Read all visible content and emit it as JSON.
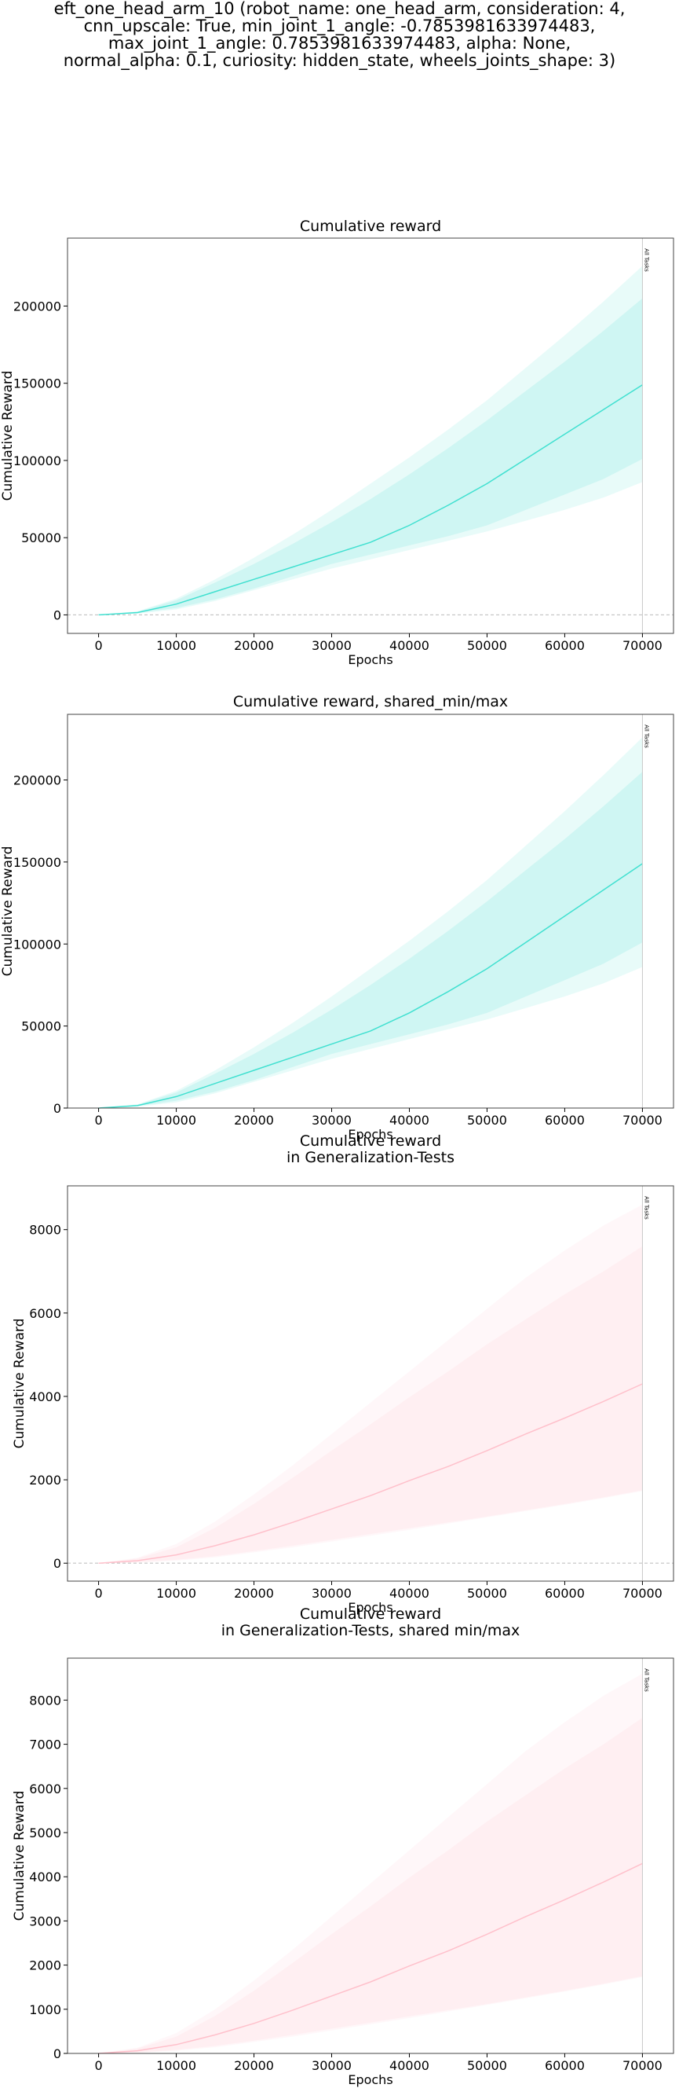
{
  "suptitle_lines": [
    "eft_one_head_arm_10 (robot_name: one_head_arm, consideration: 4,",
    "cnn_upscale: True, min_joint_1_angle: -0.7853981633974483,",
    "max_joint_1_angle: 0.7853981633974483, alpha: None,",
    "normal_alpha: 0.1, curiosity: hidden_state, wheels_joints_shape: 3)"
  ],
  "colors": {
    "turquoise": "#40e0d0",
    "pink": "#ffc0cb",
    "axis": "#444444",
    "vline": "#c8c8c8",
    "zero_line": "#bbbbbb"
  },
  "chart_data": [
    {
      "type": "line",
      "title_lines": [
        "Cumulative reward"
      ],
      "xlabel": "Epochs",
      "ylabel": "Cumulative Reward",
      "xlim": [
        -4000,
        74000
      ],
      "ylim": [
        -12000,
        244000
      ],
      "xticks": [
        0,
        10000,
        20000,
        30000,
        40000,
        50000,
        60000,
        70000
      ],
      "yticks": [
        0,
        50000,
        100000,
        150000,
        200000
      ],
      "grid": false,
      "zero_line": true,
      "vline": {
        "x": 70000,
        "label": "All Tasks"
      },
      "color": "#40e0d0",
      "x": [
        0,
        5000,
        10000,
        15000,
        20000,
        25000,
        30000,
        35000,
        40000,
        45000,
        50000,
        55000,
        60000,
        65000,
        70000
      ],
      "mean": [
        0,
        1500,
        7000,
        15000,
        23000,
        31000,
        39000,
        47000,
        58000,
        71000,
        85000,
        101000,
        117000,
        133000,
        149000
      ],
      "band_inner": {
        "lower": [
          0,
          1200,
          4500,
          10000,
          17000,
          25000,
          33000,
          39000,
          45000,
          51000,
          58000,
          68000,
          78000,
          88000,
          101000
        ],
        "upper": [
          0,
          2000,
          9500,
          21000,
          33000,
          46000,
          60000,
          75000,
          91000,
          108000,
          126000,
          145000,
          164000,
          184000,
          205000
        ]
      },
      "band_outer": {
        "lower": [
          0,
          800,
          3500,
          9000,
          16000,
          23000,
          30000,
          36000,
          42000,
          48000,
          54000,
          61000,
          68000,
          76000,
          86000
        ],
        "upper": [
          0,
          2300,
          10500,
          23000,
          37000,
          52000,
          68000,
          85000,
          102000,
          120000,
          139000,
          160000,
          181000,
          203000,
          226000
        ]
      }
    },
    {
      "type": "line",
      "title_lines": [
        "Cumulative reward, shared_min/max"
      ],
      "xlabel": "Epochs",
      "ylabel": "Cumulative Reward",
      "xlim": [
        -4000,
        74000
      ],
      "ylim": [
        0,
        240000
      ],
      "xticks": [
        0,
        10000,
        20000,
        30000,
        40000,
        50000,
        60000,
        70000
      ],
      "yticks": [
        0,
        50000,
        100000,
        150000,
        200000
      ],
      "grid": false,
      "zero_line": false,
      "vline": {
        "x": 70000,
        "label": "All Tasks"
      },
      "color": "#40e0d0",
      "x": [
        0,
        5000,
        10000,
        15000,
        20000,
        25000,
        30000,
        35000,
        40000,
        45000,
        50000,
        55000,
        60000,
        65000,
        70000
      ],
      "mean": [
        0,
        1500,
        7000,
        15000,
        23000,
        31000,
        39000,
        47000,
        58000,
        71000,
        85000,
        101000,
        117000,
        133000,
        149000
      ],
      "band_inner": {
        "lower": [
          0,
          1200,
          4500,
          10000,
          17000,
          25000,
          33000,
          39000,
          45000,
          51000,
          58000,
          68000,
          78000,
          88000,
          101000
        ],
        "upper": [
          0,
          2000,
          9500,
          21000,
          33000,
          46000,
          60000,
          75000,
          91000,
          108000,
          126000,
          145000,
          164000,
          184000,
          205000
        ]
      },
      "band_outer": {
        "lower": [
          0,
          800,
          3500,
          9000,
          16000,
          23000,
          30000,
          36000,
          42000,
          48000,
          54000,
          61000,
          68000,
          76000,
          86000
        ],
        "upper": [
          0,
          2300,
          10500,
          23000,
          37000,
          52000,
          68000,
          85000,
          102000,
          120000,
          139000,
          160000,
          181000,
          203000,
          226000
        ]
      }
    },
    {
      "type": "line",
      "title_lines": [
        "Cumulative reward",
        "in Generalization-Tests"
      ],
      "xlabel": "Epochs",
      "ylabel": "Cumulative Reward",
      "xlim": [
        -4000,
        74000
      ],
      "ylim": [
        -430,
        9050
      ],
      "xticks": [
        0,
        10000,
        20000,
        30000,
        40000,
        50000,
        60000,
        70000
      ],
      "yticks": [
        0,
        2000,
        4000,
        6000,
        8000
      ],
      "grid": false,
      "zero_line": true,
      "vline": {
        "x": 70000,
        "label": "All Tasks"
      },
      "color": "#ffc0cb",
      "x": [
        0,
        5000,
        10000,
        15000,
        20000,
        25000,
        30000,
        35000,
        40000,
        45000,
        50000,
        55000,
        60000,
        65000,
        70000
      ],
      "mean": [
        0,
        60,
        200,
        420,
        680,
        980,
        1300,
        1620,
        1980,
        2320,
        2700,
        3100,
        3480,
        3880,
        4300
      ],
      "band_inner": {
        "lower": [
          0,
          20,
          80,
          170,
          290,
          420,
          560,
          700,
          840,
          980,
          1120,
          1270,
          1420,
          1580,
          1750
        ],
        "upper": [
          0,
          110,
          380,
          850,
          1420,
          2050,
          2700,
          3330,
          3980,
          4600,
          5250,
          5850,
          6450,
          7000,
          7600
        ]
      },
      "band_outer": {
        "lower": [
          0,
          15,
          60,
          140,
          260,
          380,
          520,
          660,
          800,
          950,
          1100,
          1250,
          1400,
          1560,
          1730
        ],
        "upper": [
          0,
          130,
          460,
          1000,
          1650,
          2350,
          3100,
          3850,
          4600,
          5350,
          6100,
          6850,
          7500,
          8100,
          8600
        ]
      }
    },
    {
      "type": "line",
      "title_lines": [
        "Cumulative reward",
        "in Generalization-Tests, shared min/max"
      ],
      "xlabel": "Epochs",
      "ylabel": "Cumulative Reward",
      "xlim": [
        -4000,
        74000
      ],
      "ylim": [
        0,
        8950
      ],
      "xticks": [
        0,
        10000,
        20000,
        30000,
        40000,
        50000,
        60000,
        70000
      ],
      "yticks": [
        0,
        1000,
        2000,
        3000,
        4000,
        5000,
        6000,
        7000,
        8000
      ],
      "grid": false,
      "zero_line": false,
      "vline": {
        "x": 70000,
        "label": "All Tasks"
      },
      "color": "#ffc0cb",
      "x": [
        0,
        5000,
        10000,
        15000,
        20000,
        25000,
        30000,
        35000,
        40000,
        45000,
        50000,
        55000,
        60000,
        65000,
        70000
      ],
      "mean": [
        0,
        60,
        200,
        420,
        680,
        980,
        1300,
        1620,
        1980,
        2320,
        2700,
        3100,
        3480,
        3880,
        4300
      ],
      "band_inner": {
        "lower": [
          0,
          20,
          80,
          170,
          290,
          420,
          560,
          700,
          840,
          980,
          1120,
          1270,
          1420,
          1580,
          1750
        ],
        "upper": [
          0,
          110,
          380,
          850,
          1420,
          2050,
          2700,
          3330,
          3980,
          4600,
          5250,
          5850,
          6450,
          7000,
          7600
        ]
      },
      "band_outer": {
        "lower": [
          0,
          15,
          60,
          140,
          260,
          380,
          520,
          660,
          800,
          950,
          1100,
          1250,
          1400,
          1560,
          1730
        ],
        "upper": [
          0,
          130,
          460,
          1000,
          1650,
          2350,
          3100,
          3850,
          4600,
          5350,
          6100,
          6850,
          7500,
          8100,
          8600
        ]
      }
    }
  ]
}
